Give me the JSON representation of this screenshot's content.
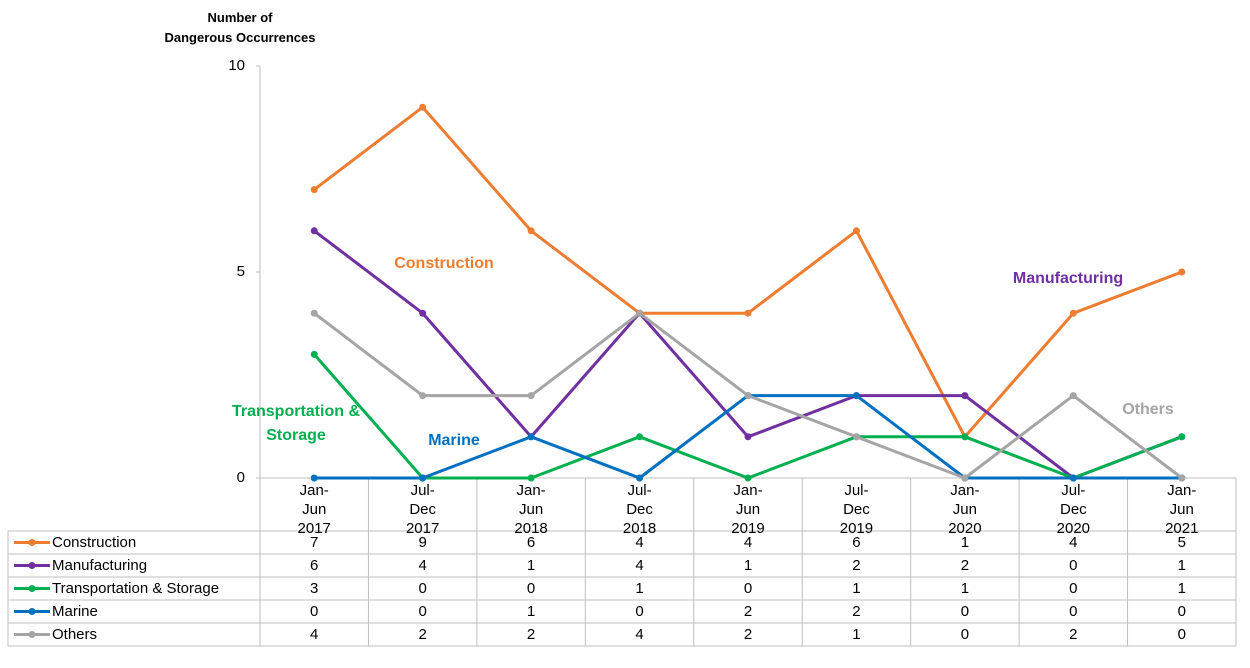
{
  "chart_data": {
    "type": "line",
    "y_label": [
      "Number of",
      "Dangerous Occurrences"
    ],
    "categories": [
      "Jan-Jun 2017",
      "Jul-Dec 2017",
      "Jan-Jun 2018",
      "Jul-Dec 2018",
      "Jan-Jun 2019",
      "Jul-Dec 2019",
      "Jan-Jun 2020",
      "Jul-Dec 2020",
      "Jan-Jun 2021"
    ],
    "series": [
      {
        "name": "Construction",
        "color": "#ed7d31",
        "values": [
          7,
          9,
          6,
          4,
          4,
          6,
          1,
          4,
          5
        ]
      },
      {
        "name": "Manufacturing",
        "color": "#7030a0",
        "values": [
          6,
          4,
          1,
          4,
          1,
          2,
          2,
          0,
          1
        ]
      },
      {
        "name": "Transportation & Storage",
        "color": "#00b050",
        "values": [
          3,
          0,
          0,
          1,
          0,
          1,
          1,
          0,
          1
        ]
      },
      {
        "name": "Marine",
        "color": "#0070c0",
        "values": [
          0,
          0,
          1,
          0,
          2,
          2,
          0,
          0,
          0
        ]
      },
      {
        "name": "Others",
        "color": "#a5a5a5",
        "values": [
          4,
          2,
          2,
          4,
          2,
          1,
          0,
          2,
          0
        ]
      }
    ],
    "ylim": [
      0,
      10
    ],
    "yticks": [
      0,
      5,
      10
    ],
    "data_table": true
  }
}
